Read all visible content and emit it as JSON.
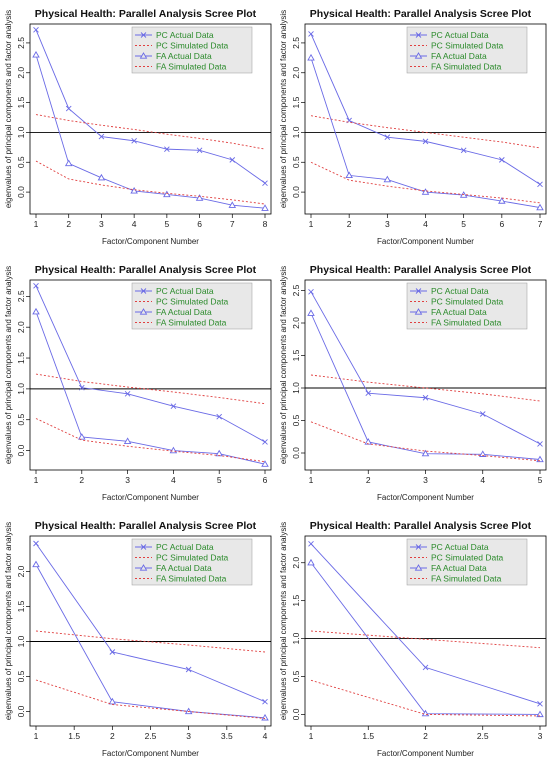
{
  "chart_data": [
    {
      "type": "line",
      "title": "Physical Health: Parallel Analysis Scree Plot",
      "xlabel": "Factor/Component Number",
      "ylabel": "eigenvalues of principal components and factor analysis",
      "x": [
        1,
        2,
        3,
        4,
        5,
        6,
        7,
        8
      ],
      "xticks": [
        1,
        2,
        3,
        4,
        5,
        6,
        7,
        8
      ],
      "xlim": [
        1,
        8
      ],
      "ylim": [
        -0.3,
        2.75
      ],
      "yticks": [
        0.0,
        0.5,
        1.0,
        1.5,
        2.0,
        2.5
      ],
      "hline": 1.0,
      "series": [
        {
          "name": "PC  Actual Data",
          "values": [
            2.72,
            1.4,
            0.93,
            0.86,
            0.72,
            0.7,
            0.54,
            0.15
          ]
        },
        {
          "name": "PC  Simulated Data",
          "values": [
            1.3,
            1.2,
            1.12,
            1.05,
            0.97,
            0.9,
            0.82,
            0.72
          ]
        },
        {
          "name": "FA  Actual Data",
          "values": [
            2.3,
            0.48,
            0.24,
            0.02,
            -0.04,
            -0.1,
            -0.22,
            -0.27
          ]
        },
        {
          "name": "FA  Simulated Data",
          "values": [
            0.52,
            0.22,
            0.12,
            0.04,
            -0.02,
            -0.07,
            -0.13,
            -0.2
          ]
        }
      ]
    },
    {
      "type": "line",
      "title": "Physical Health: Parallel Analysis Scree Plot",
      "xlabel": "Factor/Component Number",
      "ylabel": "eigenvalues of principal components and factor analysis",
      "x": [
        1,
        2,
        3,
        4,
        5,
        6,
        7
      ],
      "xticks": [
        1,
        2,
        3,
        4,
        5,
        6,
        7
      ],
      "xlim": [
        1,
        7
      ],
      "ylim": [
        -0.3,
        2.75
      ],
      "yticks": [
        0.0,
        0.5,
        1.0,
        1.5,
        2.0,
        2.5
      ],
      "hline": 1.0,
      "series": [
        {
          "name": "PC  Actual Data",
          "values": [
            2.65,
            1.2,
            0.92,
            0.85,
            0.7,
            0.54,
            0.13
          ]
        },
        {
          "name": "PC  Simulated Data",
          "values": [
            1.28,
            1.17,
            1.08,
            1.0,
            0.92,
            0.84,
            0.74
          ]
        },
        {
          "name": "FA  Actual Data",
          "values": [
            2.25,
            0.28,
            0.21,
            0.0,
            -0.05,
            -0.15,
            -0.26
          ]
        },
        {
          "name": "FA  Simulated Data",
          "values": [
            0.5,
            0.2,
            0.1,
            0.02,
            -0.04,
            -0.1,
            -0.18
          ]
        }
      ]
    },
    {
      "type": "line",
      "title": "Physical Health: Parallel Analysis Scree Plot",
      "xlabel": "Factor/Component Number",
      "ylabel": "eigenvalues of principal components and factor analysis",
      "x": [
        1,
        2,
        3,
        4,
        5,
        6
      ],
      "xticks": [
        1,
        2,
        3,
        4,
        5,
        6
      ],
      "xlim": [
        1,
        6
      ],
      "ylim": [
        -0.25,
        2.7
      ],
      "yticks": [
        0.0,
        0.5,
        1.0,
        1.5,
        2.0,
        2.5
      ],
      "hline": 1.0,
      "series": [
        {
          "name": "PC  Actual Data",
          "values": [
            2.67,
            1.02,
            0.92,
            0.72,
            0.55,
            0.14
          ]
        },
        {
          "name": "PC  Simulated Data",
          "values": [
            1.24,
            1.12,
            1.03,
            0.95,
            0.86,
            0.76
          ]
        },
        {
          "name": "FA  Actual Data",
          "values": [
            2.25,
            0.22,
            0.15,
            0.0,
            -0.05,
            -0.22
          ]
        },
        {
          "name": "FA  Simulated Data",
          "values": [
            0.52,
            0.17,
            0.07,
            -0.01,
            -0.08,
            -0.18
          ]
        }
      ]
    },
    {
      "type": "line",
      "title": "Physical Health: Parallel Analysis Scree Plot",
      "xlabel": "Factor/Component Number",
      "ylabel": "eigenvalues of principal components and factor analysis",
      "x": [
        1,
        2,
        3,
        4,
        5
      ],
      "xticks": [
        1,
        2,
        3,
        4,
        5
      ],
      "xlim": [
        1,
        5
      ],
      "ylim": [
        -0.2,
        2.6
      ],
      "yticks": [
        0.0,
        0.5,
        1.0,
        1.5,
        2.0,
        2.5
      ],
      "hline": 1.0,
      "series": [
        {
          "name": "PC  Actual Data",
          "values": [
            2.48,
            0.92,
            0.85,
            0.6,
            0.14
          ]
        },
        {
          "name": "PC  Simulated Data",
          "values": [
            1.2,
            1.09,
            1.0,
            0.91,
            0.8
          ]
        },
        {
          "name": "FA  Actual Data",
          "values": [
            2.15,
            0.17,
            -0.01,
            -0.02,
            -0.1
          ]
        },
        {
          "name": "FA  Simulated Data",
          "values": [
            0.48,
            0.14,
            0.03,
            -0.04,
            -0.12
          ]
        }
      ]
    },
    {
      "type": "line",
      "title": "Physical Health: Parallel Analysis Scree Plot",
      "xlabel": "Factor/Component Number",
      "ylabel": "eigenvalues of principal components and factor analysis",
      "x": [
        1,
        2,
        3,
        4
      ],
      "xticks": [
        1.0,
        1.5,
        2.0,
        2.5,
        3.0,
        3.5,
        4.0
      ],
      "xlim": [
        1,
        4
      ],
      "ylim": [
        -0.15,
        2.45
      ],
      "yticks": [
        0.0,
        0.5,
        1.0,
        1.5,
        2.0
      ],
      "hline": 1.0,
      "series": [
        {
          "name": "PC  Actual Data",
          "values": [
            2.4,
            0.85,
            0.6,
            0.14
          ]
        },
        {
          "name": "PC  Simulated Data",
          "values": [
            1.15,
            1.04,
            0.95,
            0.85
          ]
        },
        {
          "name": "FA  Actual Data",
          "values": [
            2.1,
            0.14,
            0.0,
            -0.09
          ]
        },
        {
          "name": "FA  Simulated Data",
          "values": [
            0.45,
            0.1,
            0.0,
            -0.1
          ]
        }
      ]
    },
    {
      "type": "line",
      "title": "Physical Health: Parallel Analysis Scree Plot",
      "xlabel": "Factor/Component Number",
      "ylabel": "eigenvalues of principal components and factor analysis",
      "x": [
        1,
        2,
        3
      ],
      "xticks": [
        1.0,
        1.5,
        2.0,
        2.5,
        3.0
      ],
      "xlim": [
        1,
        3
      ],
      "ylim": [
        -0.1,
        2.3
      ],
      "yticks": [
        0.0,
        0.5,
        1.0,
        1.5,
        2.0
      ],
      "hline": 1.0,
      "series": [
        {
          "name": "PC  Actual Data",
          "values": [
            2.25,
            0.62,
            0.14
          ]
        },
        {
          "name": "PC  Simulated Data",
          "values": [
            1.1,
            0.99,
            0.88
          ]
        },
        {
          "name": "FA  Actual Data",
          "values": [
            2.0,
            0.01,
            0.0
          ]
        },
        {
          "name": "FA  Simulated Data",
          "values": [
            0.45,
            0.0,
            -0.02
          ]
        }
      ]
    }
  ],
  "style": {
    "actual_color": "#6a6ae6",
    "simulated_color": "#e04040",
    "legend_text_color": "#2a8a2a",
    "legend_bg": "#e8e8e8",
    "hline_color": "#000000",
    "markers": {
      "PC  Actual Data": "x-mark",
      "FA  Actual Data": "triangle-mark"
    }
  }
}
